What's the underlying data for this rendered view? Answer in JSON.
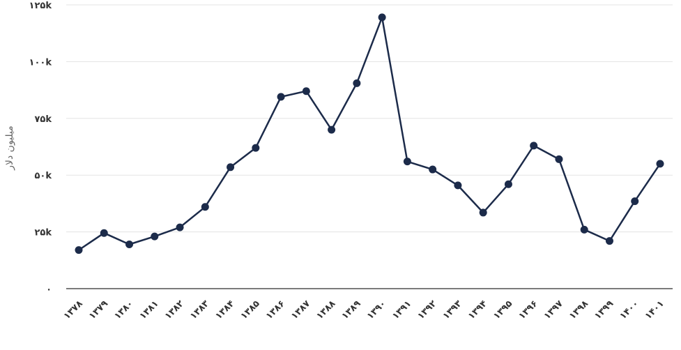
{
  "chart_data": {
    "type": "line",
    "title": "",
    "xlabel": "",
    "ylabel": "میلیون دلار",
    "categories": [
      "۱۳۷۸",
      "۱۳۷۹",
      "۱۳۸۰",
      "۱۳۸۱",
      "۱۳۸۲",
      "۱۳۸۳",
      "۱۳۸۴",
      "۱۳۸۵",
      "۱۳۸۶",
      "۱۳۸۷",
      "۱۳۸۸",
      "۱۳۸۹",
      "۱۳۹۰",
      "۱۳۹۱",
      "۱۳۹۲",
      "۱۳۹۳",
      "۱۳۹۴",
      "۱۳۹۵",
      "۱۳۹۶",
      "۱۳۹۷",
      "۱۳۹۸",
      "۱۳۹۹",
      "۱۴۰۰",
      "۱۴۰۱"
    ],
    "series": [
      {
        "values": [
          17000,
          24500,
          19500,
          23000,
          27000,
          36000,
          53500,
          62000,
          84500,
          87000,
          70000,
          90500,
          119500,
          56000,
          52500,
          45500,
          33500,
          46000,
          63000,
          57000,
          26000,
          21000,
          38500,
          55000
        ]
      }
    ],
    "ylim": [
      0,
      125000
    ],
    "yticks": [
      0,
      25000,
      50000,
      75000,
      100000,
      125000
    ],
    "ytick_labels": [
      "۰",
      "۲۵k",
      "۵۰k",
      "۷۵k",
      "۱۰۰k",
      "۱۲۵k"
    ],
    "grid": true,
    "legend": "none",
    "colors": {
      "line": "#1c2b4a",
      "grid": "#e3e3e3",
      "axis": "#7a7a7a",
      "text": "#333333"
    }
  }
}
